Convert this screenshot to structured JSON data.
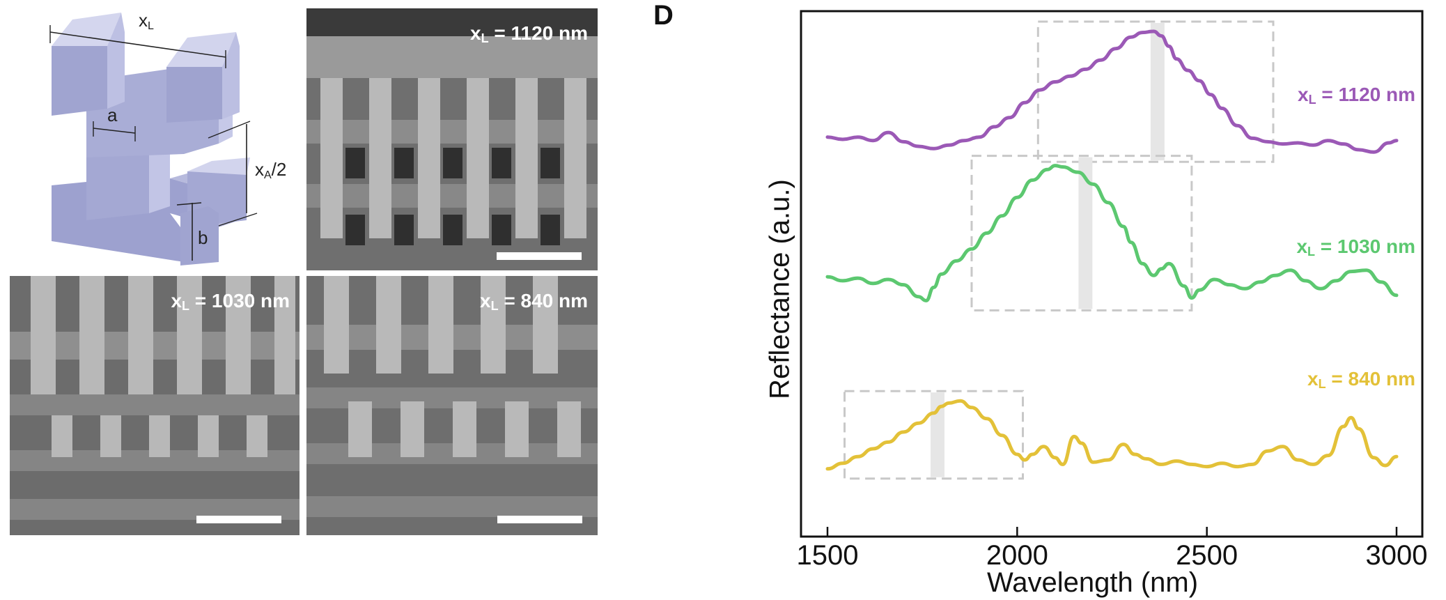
{
  "panel_letter": "D",
  "schematic": {
    "labels": {
      "xL": "x",
      "xL_sub": "L",
      "a": "a",
      "xA": "x",
      "xA_sub": "A",
      "xA_tail": "/2",
      "b": "b"
    }
  },
  "sem_images": [
    {
      "prefix": "x",
      "sub": "L",
      "value": " = 1120 nm"
    },
    {
      "prefix": "x",
      "sub": "L",
      "value": " = 1030 nm"
    },
    {
      "prefix": "x",
      "sub": "L",
      "value": " = 840 nm"
    }
  ],
  "colors": {
    "purple": "#9b59b6",
    "green": "#5cc870",
    "yellow": "#e3c138",
    "band": "#e6e6e6",
    "box": "#c8c8c8"
  },
  "chart_data": {
    "type": "line",
    "xlabel": "Wavelength (nm)",
    "ylabel": "Reflectance (a.u.)",
    "xlim": [
      1500,
      3000
    ],
    "xticks": [
      1500,
      2000,
      2500,
      3000
    ],
    "yticks": [],
    "grid": false,
    "series": [
      {
        "name": "xL = 1120 nm",
        "label_prefix": "x",
        "label_sub": "L",
        "label_value": " = 1120 nm",
        "color": "#9b59b6",
        "offset": 2.0,
        "x": [
          1500,
          1540,
          1580,
          1620,
          1660,
          1700,
          1740,
          1780,
          1820,
          1860,
          1900,
          1940,
          1980,
          2020,
          2060,
          2100,
          2140,
          2180,
          2220,
          2260,
          2300,
          2330,
          2360,
          2380,
          2400,
          2420,
          2450,
          2480,
          2510,
          2540,
          2580,
          2620,
          2660,
          2700,
          2740,
          2780,
          2820,
          2860,
          2900,
          2940,
          2980,
          3000
        ],
        "y": [
          0.05,
          0.03,
          0.05,
          0.02,
          0.09,
          0.01,
          -0.03,
          -0.05,
          -0.02,
          0.02,
          0.05,
          0.14,
          0.22,
          0.35,
          0.46,
          0.53,
          0.58,
          0.64,
          0.72,
          0.82,
          0.92,
          0.96,
          0.97,
          0.93,
          0.84,
          0.73,
          0.63,
          0.54,
          0.42,
          0.3,
          0.15,
          0.04,
          0.01,
          -0.01,
          0.0,
          -0.02,
          0.02,
          -0.01,
          -0.06,
          -0.08,
          0.0,
          0.02
        ]
      },
      {
        "name": "xL = 1030 nm",
        "label_prefix": "x",
        "label_sub": "L",
        "label_value": " = 1030 nm",
        "color": "#5cc870",
        "offset": 1.0,
        "x": [
          1500,
          1540,
          1580,
          1620,
          1660,
          1700,
          1740,
          1760,
          1780,
          1800,
          1840,
          1880,
          1920,
          1960,
          2000,
          2040,
          2080,
          2100,
          2120,
          2160,
          2200,
          2240,
          2280,
          2300,
          2330,
          2360,
          2380,
          2400,
          2440,
          2460,
          2480,
          2520,
          2560,
          2600,
          2640,
          2680,
          2720,
          2760,
          2800,
          2840,
          2880,
          2920,
          2960,
          3000
        ],
        "y": [
          0.12,
          0.09,
          0.11,
          0.07,
          0.1,
          0.06,
          -0.03,
          -0.06,
          0.04,
          0.14,
          0.24,
          0.33,
          0.45,
          0.58,
          0.72,
          0.85,
          0.93,
          0.96,
          0.95,
          0.91,
          0.82,
          0.68,
          0.5,
          0.38,
          0.22,
          0.13,
          0.18,
          0.22,
          0.05,
          -0.04,
          0.02,
          0.1,
          0.06,
          0.03,
          0.08,
          0.13,
          0.17,
          0.09,
          0.03,
          0.09,
          0.16,
          0.17,
          0.08,
          -0.02
        ]
      },
      {
        "name": "xL = 840 nm",
        "label_prefix": "x",
        "label_sub": "L",
        "label_value": " = 840 nm",
        "color": "#e3c138",
        "offset": 0.0,
        "x": [
          1500,
          1540,
          1580,
          1620,
          1660,
          1700,
          1740,
          1780,
          1800,
          1820,
          1850,
          1880,
          1920,
          1960,
          2000,
          2020,
          2040,
          2070,
          2100,
          2120,
          2150,
          2170,
          2200,
          2240,
          2280,
          2310,
          2340,
          2380,
          2420,
          2460,
          2500,
          2540,
          2580,
          2620,
          2660,
          2700,
          2740,
          2780,
          2820,
          2860,
          2880,
          2900,
          2940,
          2970,
          3000
        ],
        "y": [
          0.02,
          0.07,
          0.13,
          0.2,
          0.26,
          0.35,
          0.43,
          0.52,
          0.58,
          0.61,
          0.63,
          0.57,
          0.47,
          0.32,
          0.15,
          0.1,
          0.15,
          0.22,
          0.12,
          0.06,
          0.31,
          0.25,
          0.08,
          0.1,
          0.24,
          0.15,
          0.11,
          0.06,
          0.09,
          0.06,
          0.04,
          0.07,
          0.04,
          0.06,
          0.18,
          0.22,
          0.1,
          0.06,
          0.14,
          0.4,
          0.48,
          0.38,
          0.12,
          0.05,
          0.13
        ]
      }
    ],
    "highlight_boxes": [
      {
        "series": 0,
        "x0": 2055,
        "x1": 2675,
        "band_x": 2370
      },
      {
        "series": 1,
        "x0": 1880,
        "x1": 2460,
        "band_x": 2180
      },
      {
        "series": 2,
        "x0": 1545,
        "x1": 2015,
        "band_x": 1790
      }
    ]
  }
}
